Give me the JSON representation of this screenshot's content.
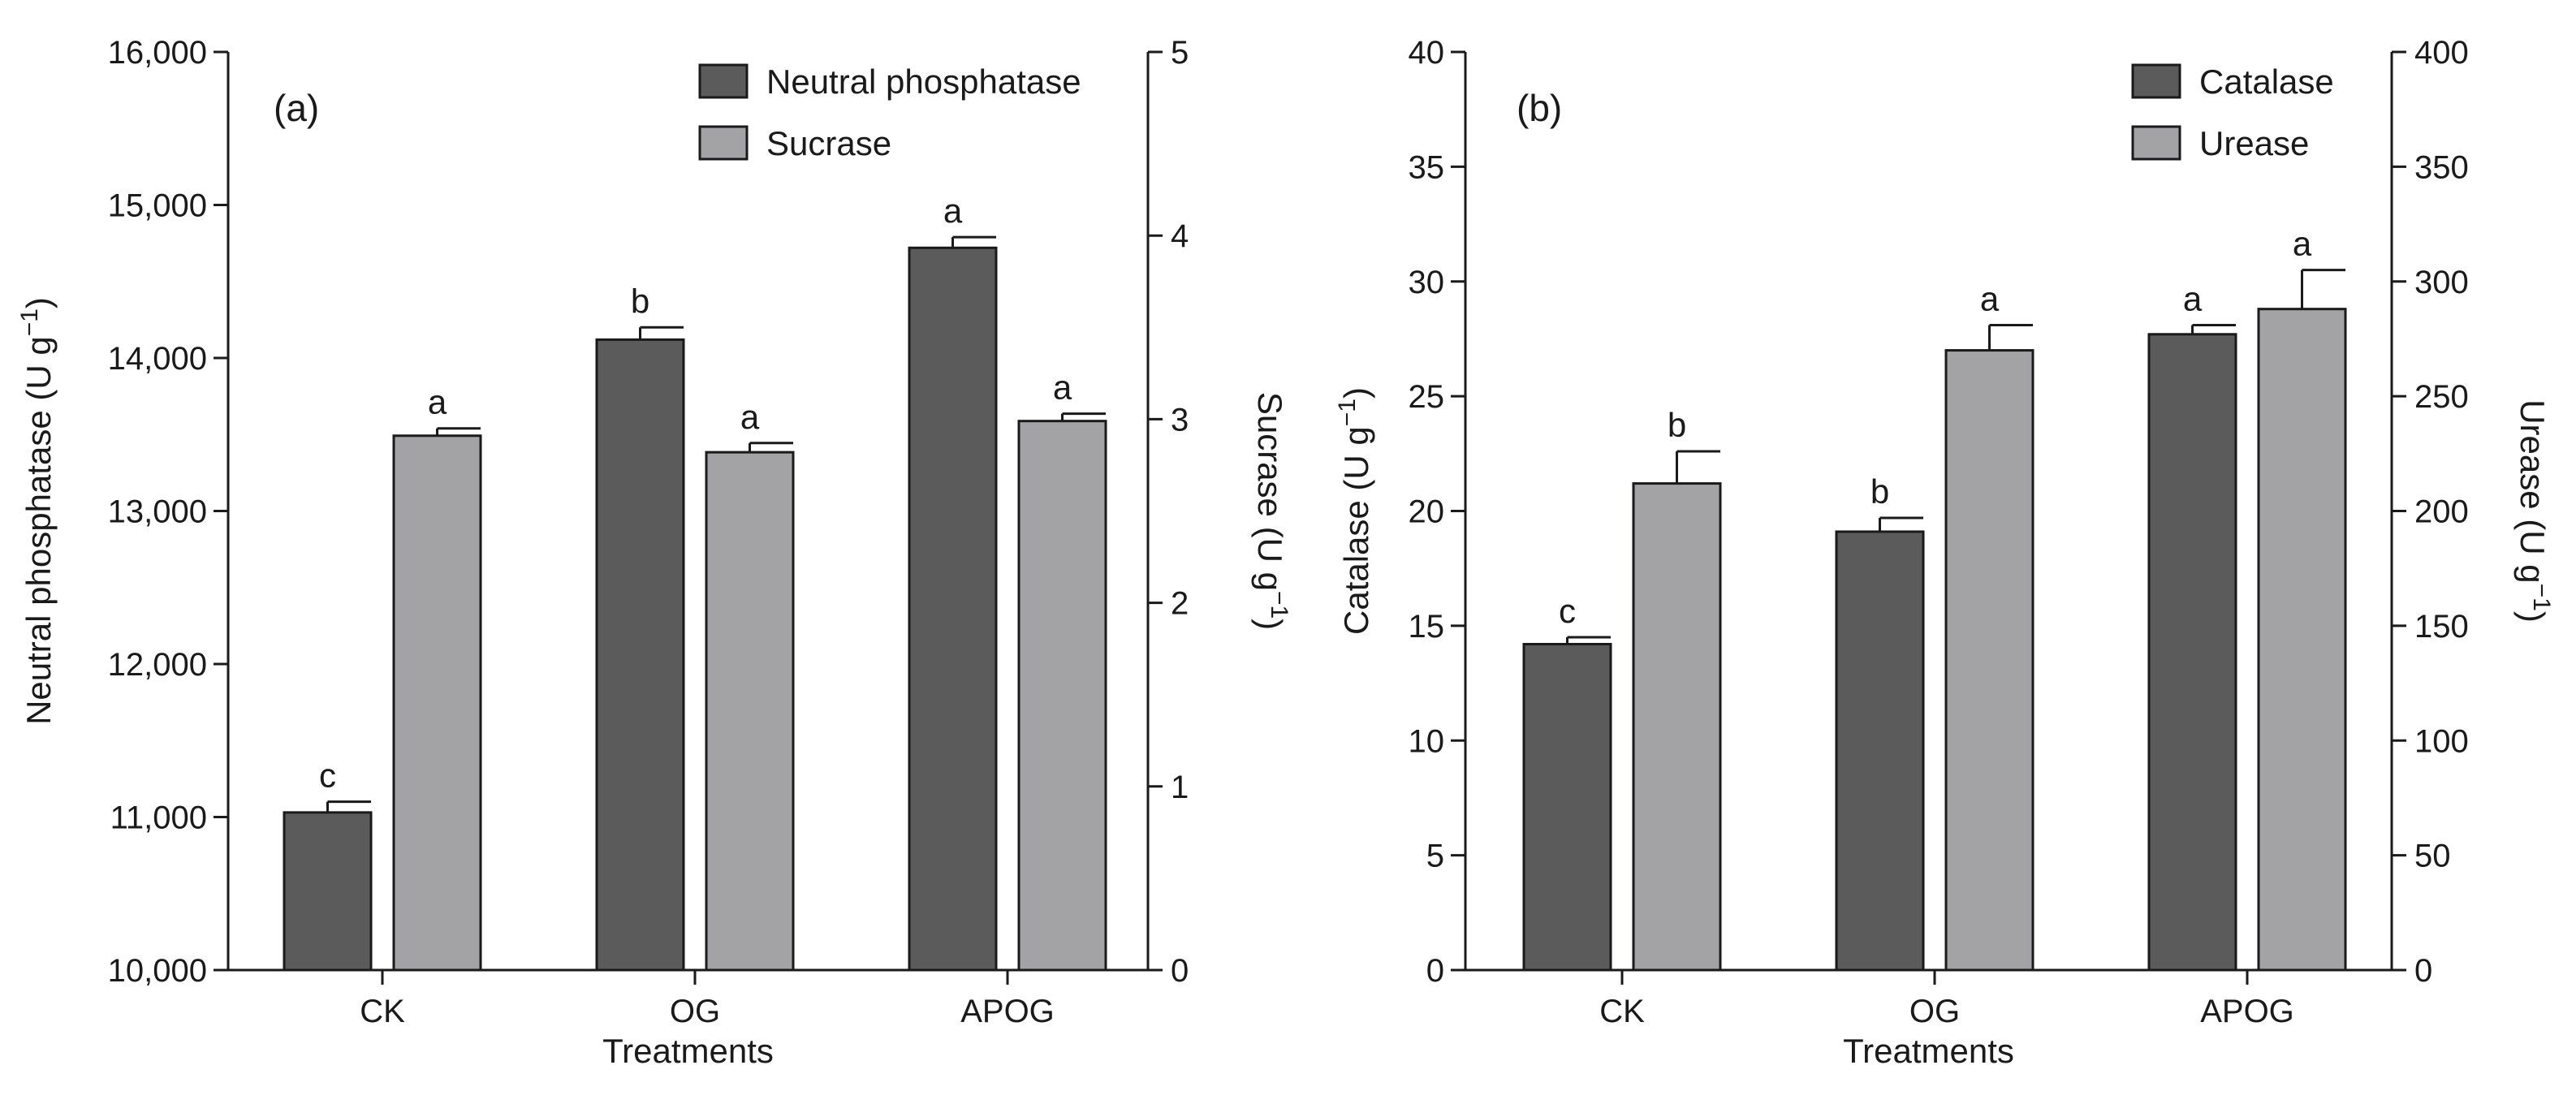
{
  "colors": {
    "dark_bar": "#5b5b5b",
    "light_bar": "#a3a3a6",
    "axis": "#1a1a1a"
  },
  "chart_data": [
    {
      "type": "bar",
      "panel_label": "(a)",
      "xlabel": "Treatments",
      "categories": [
        "CK",
        "OG",
        "APOG"
      ],
      "left_axis": {
        "label": "Neutral phosphatase (U g",
        "superscript": "−1",
        "label_end": ")",
        "ylim": [
          10000,
          16000
        ],
        "ticks": [
          10000,
          11000,
          12000,
          13000,
          14000,
          15000,
          16000
        ],
        "tick_labels": [
          "10,000",
          "11,000",
          "12,000",
          "13,000",
          "14,000",
          "15,000",
          "16,000"
        ]
      },
      "right_axis": {
        "label": "Sucrase (U g",
        "superscript": "−1",
        "label_end": ")",
        "ylim": [
          0,
          5
        ],
        "ticks": [
          0,
          1,
          2,
          3,
          4,
          5
        ],
        "tick_labels": [
          "0",
          "1",
          "2",
          "3",
          "4",
          "5"
        ]
      },
      "series": [
        {
          "name": "Neutral phosphatase",
          "axis": "left",
          "color": "#5b5b5b",
          "values": [
            11030,
            14120,
            14720
          ],
          "errors": [
            70,
            80,
            70
          ],
          "letters": [
            "c",
            "b",
            "a"
          ]
        },
        {
          "name": "Sucrase",
          "axis": "right",
          "color": "#a3a3a6",
          "values": [
            2.91,
            2.82,
            2.99
          ],
          "errors": [
            0.04,
            0.05,
            0.04
          ],
          "letters": [
            "a",
            "a",
            "a"
          ]
        }
      ],
      "legend_position": "top-right"
    },
    {
      "type": "bar",
      "panel_label": "(b)",
      "xlabel": "Treatments",
      "categories": [
        "CK",
        "OG",
        "APOG"
      ],
      "left_axis": {
        "label": "Catalase (U g",
        "superscript": "−1",
        "label_end": ")",
        "ylim": [
          0,
          40
        ],
        "ticks": [
          0,
          5,
          10,
          15,
          20,
          25,
          30,
          35,
          40
        ],
        "tick_labels": [
          "0",
          "5",
          "10",
          "15",
          "20",
          "25",
          "30",
          "35",
          "40"
        ]
      },
      "right_axis": {
        "label": "Urease (U g",
        "superscript": "−1",
        "label_end": ")",
        "ylim": [
          0,
          400
        ],
        "ticks": [
          0,
          50,
          100,
          150,
          200,
          250,
          300,
          350,
          400
        ],
        "tick_labels": [
          "0",
          "50",
          "100",
          "150",
          "200",
          "250",
          "300",
          "350",
          "400"
        ]
      },
      "series": [
        {
          "name": "Catalase",
          "axis": "left",
          "color": "#5b5b5b",
          "values": [
            14.2,
            19.1,
            27.7
          ],
          "errors": [
            0.3,
            0.6,
            0.4
          ],
          "letters": [
            "c",
            "b",
            "a"
          ]
        },
        {
          "name": "Urease",
          "axis": "right",
          "color": "#a3a3a6",
          "values": [
            212,
            270,
            288
          ],
          "errors": [
            14,
            11,
            17
          ],
          "letters": [
            "b",
            "a",
            "a"
          ]
        }
      ],
      "legend_position": "top-right"
    }
  ]
}
